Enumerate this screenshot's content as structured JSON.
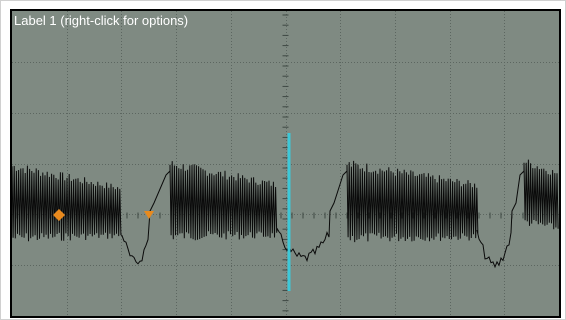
{
  "scope": {
    "label": "Label 1 (right-click for options)",
    "colors": {
      "background": "#7f8a82",
      "grid": "#5c6660",
      "trace": "#0a0a0a",
      "cursor": "#3cc8d8",
      "marker": "#e88a1e",
      "label_text": "#ffffff"
    },
    "grid": {
      "divisions_x": 10,
      "divisions_y": 6
    },
    "markers": [
      {
        "name": "marker-diamond",
        "shape": "diamond"
      },
      {
        "name": "marker-triangle",
        "shape": "triangle-down"
      }
    ]
  }
}
